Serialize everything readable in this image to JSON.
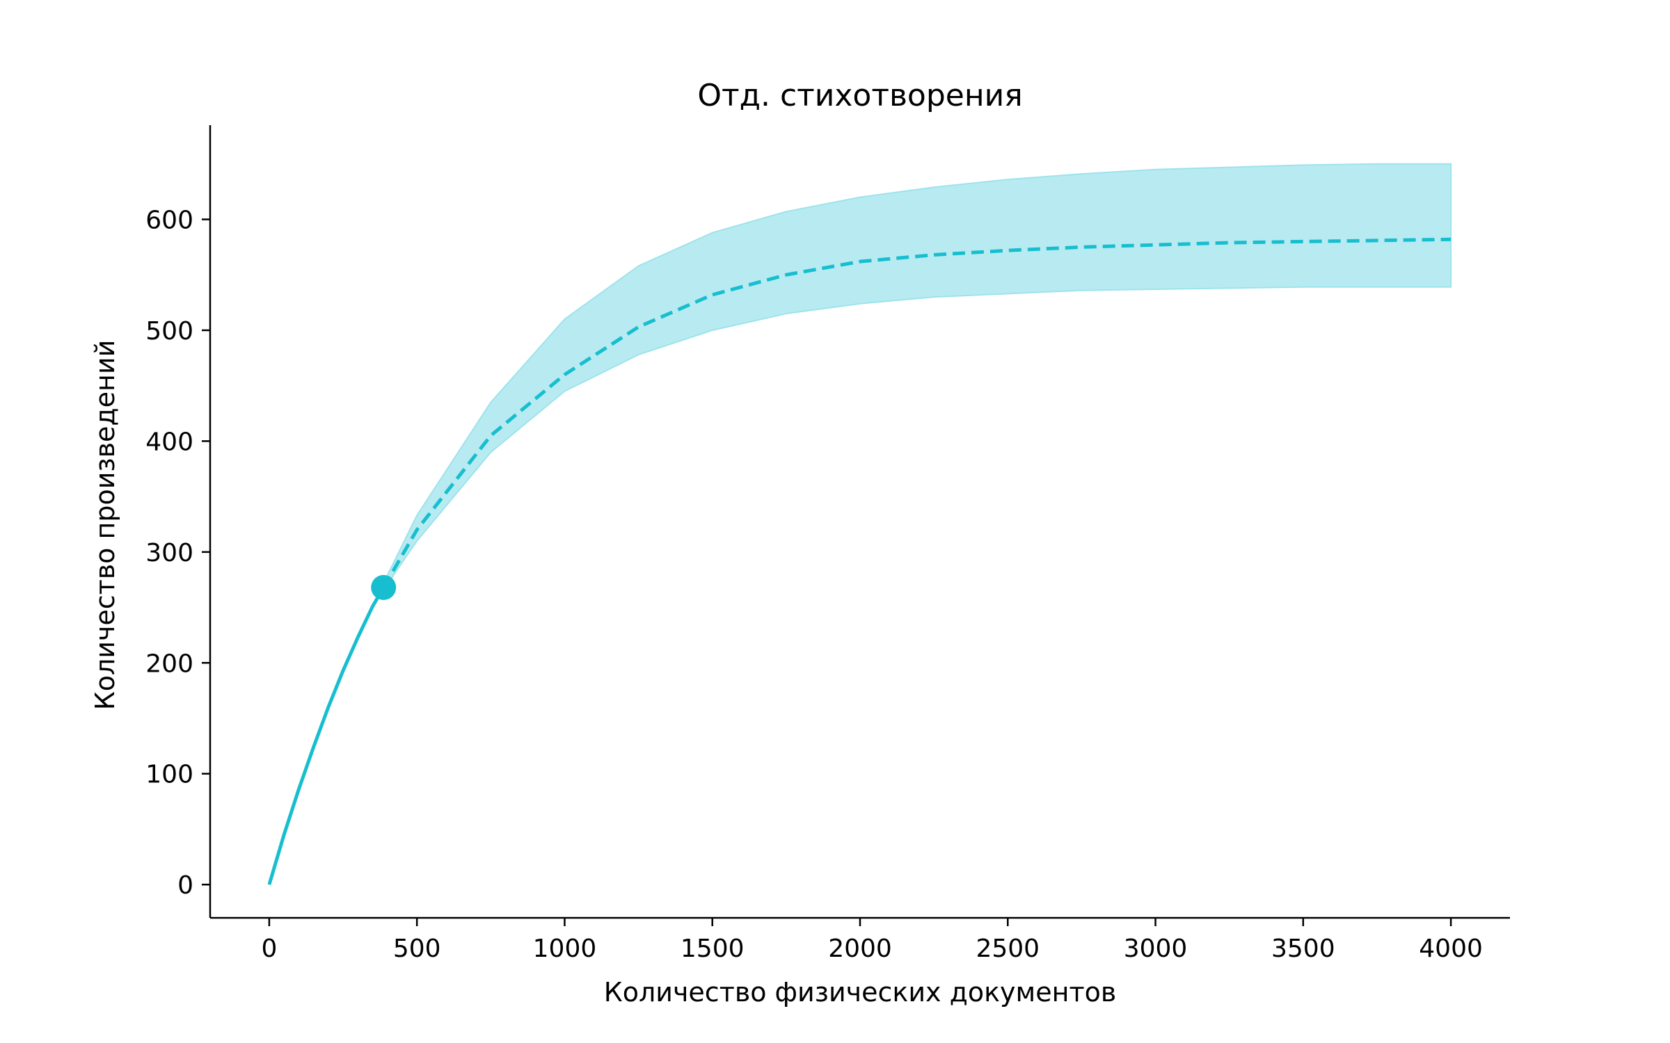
{
  "chart_data": {
    "type": "line",
    "title": "Отд. стихотворения",
    "xlabel": "Количество физических документов",
    "ylabel": "Количество произведений",
    "xlim": [
      -200,
      4200
    ],
    "ylim": [
      -30,
      685
    ],
    "x_ticks": [
      0,
      500,
      1000,
      1500,
      2000,
      2500,
      3000,
      3500,
      4000
    ],
    "y_ticks": [
      0,
      100,
      200,
      300,
      400,
      500,
      600
    ],
    "grid": false,
    "legend": "none",
    "color": "#17becf",
    "band_color": "#9ce3ec",
    "observed_point": {
      "x": 387,
      "y": 268
    },
    "series": [
      {
        "style": "solid",
        "x": [
          0,
          50,
          100,
          150,
          200,
          250,
          300,
          350,
          387
        ],
        "y": [
          0,
          45,
          86,
          124,
          160,
          193,
          223,
          251,
          268
        ]
      },
      {
        "style": "dashed",
        "x": [
          387,
          500,
          750,
          1000,
          1250,
          1500,
          1750,
          2000,
          2250,
          2500,
          2750,
          3000,
          3250,
          3500,
          3750,
          4000
        ],
        "y": [
          268,
          320,
          405,
          460,
          503,
          532,
          550,
          562,
          568,
          572,
          575,
          577,
          579,
          580,
          581,
          582
        ]
      }
    ],
    "band": {
      "x": [
        387,
        500,
        750,
        1000,
        1250,
        1500,
        1750,
        2000,
        2250,
        2500,
        2750,
        3000,
        3250,
        3500,
        3750,
        4000
      ],
      "upper": [
        272,
        333,
        435,
        510,
        558,
        588,
        607,
        620,
        629,
        636,
        641,
        645,
        647,
        649,
        650,
        650
      ],
      "lower": [
        266,
        310,
        390,
        445,
        478,
        500,
        515,
        524,
        530,
        533,
        536,
        537,
        538,
        539,
        539,
        539
      ]
    }
  }
}
